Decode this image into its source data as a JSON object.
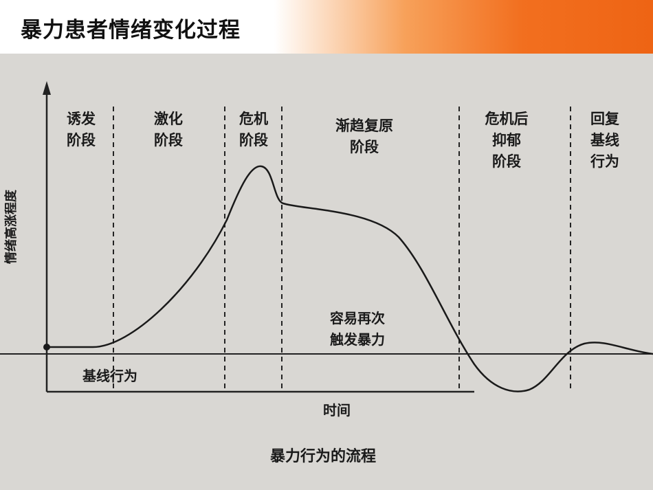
{
  "header": {
    "title": "暴力患者情绪变化过程"
  },
  "diagram": {
    "y_axis_label": "情绪高涨程度",
    "x_axis_label": "时间",
    "caption": "暴力行为的流程",
    "phases": [
      {
        "lines": [
          "诱发",
          "阶段"
        ]
      },
      {
        "lines": [
          "激化",
          "阶段"
        ]
      },
      {
        "lines": [
          "危机",
          "阶段"
        ]
      },
      {
        "lines": [
          "渐趋复原",
          "阶段"
        ]
      },
      {
        "lines": [
          "危机后",
          "抑郁",
          "阶段"
        ]
      },
      {
        "lines": [
          "回复",
          "基线",
          "行为"
        ]
      }
    ],
    "annotations": [
      {
        "lines": [
          "容易再次",
          "触发暴力"
        ]
      },
      {
        "lines": [
          "基线行为"
        ]
      }
    ]
  }
}
